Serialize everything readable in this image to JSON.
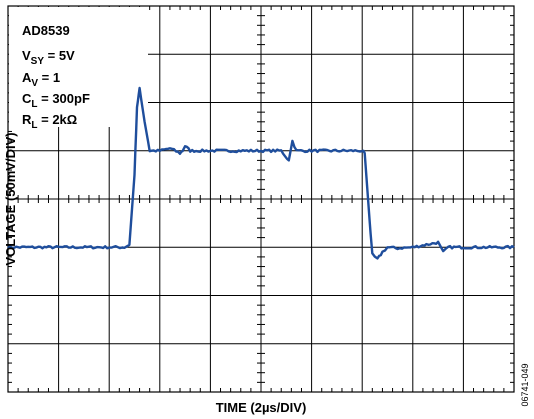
{
  "chart_data": {
    "type": "line",
    "title": "",
    "xlabel": "TIME (2µs/DIV)",
    "ylabel": "VOLTAGE (50mV/DIV)",
    "x_divisions": 10,
    "y_divisions": 8,
    "xlim": [
      0,
      10
    ],
    "ylim": [
      -4,
      4
    ],
    "x_unit": "div",
    "y_unit": "div",
    "grid": true,
    "annotation": {
      "part": "AD8539",
      "vsy": {
        "symbol": "V",
        "sub": "SY",
        "value": " = 5V"
      },
      "av": {
        "symbol": "A",
        "sub": "V",
        "value": " = 1"
      },
      "cl": {
        "symbol": "C",
        "sub": "L",
        "value": " = 300pF"
      },
      "rl": {
        "symbol": "R",
        "sub": "L",
        "value": " = 2kΩ"
      }
    },
    "figure_id": "06741-049",
    "series": [
      {
        "color": "#1f4e9c",
        "x": [
          0,
          1.0,
          2.0,
          2.3,
          2.4,
          2.5,
          2.55,
          2.6,
          2.7,
          2.8,
          3.0,
          3.2,
          3.4,
          3.45,
          3.5,
          3.6,
          4.0,
          5.0,
          5.4,
          5.55,
          5.62,
          5.7,
          6.0,
          6.9,
          7.0,
          7.05,
          7.15,
          7.2,
          7.3,
          7.4,
          7.5,
          7.7,
          8.0,
          8.5,
          8.6,
          8.7,
          9.0,
          10.0
        ],
        "y": [
          -1.0,
          -1.0,
          -1.0,
          -1.0,
          -0.95,
          0.5,
          1.9,
          2.3,
          1.6,
          1.0,
          1.0,
          1.05,
          0.95,
          1.0,
          1.1,
          1.0,
          1.0,
          1.0,
          1.0,
          0.8,
          1.2,
          1.0,
          1.0,
          1.0,
          1.0,
          0.95,
          -0.5,
          -1.15,
          -1.25,
          -1.1,
          -1.0,
          -1.02,
          -1.0,
          -0.9,
          -1.1,
          -1.0,
          -1.0,
          -1.0
        ]
      }
    ]
  }
}
